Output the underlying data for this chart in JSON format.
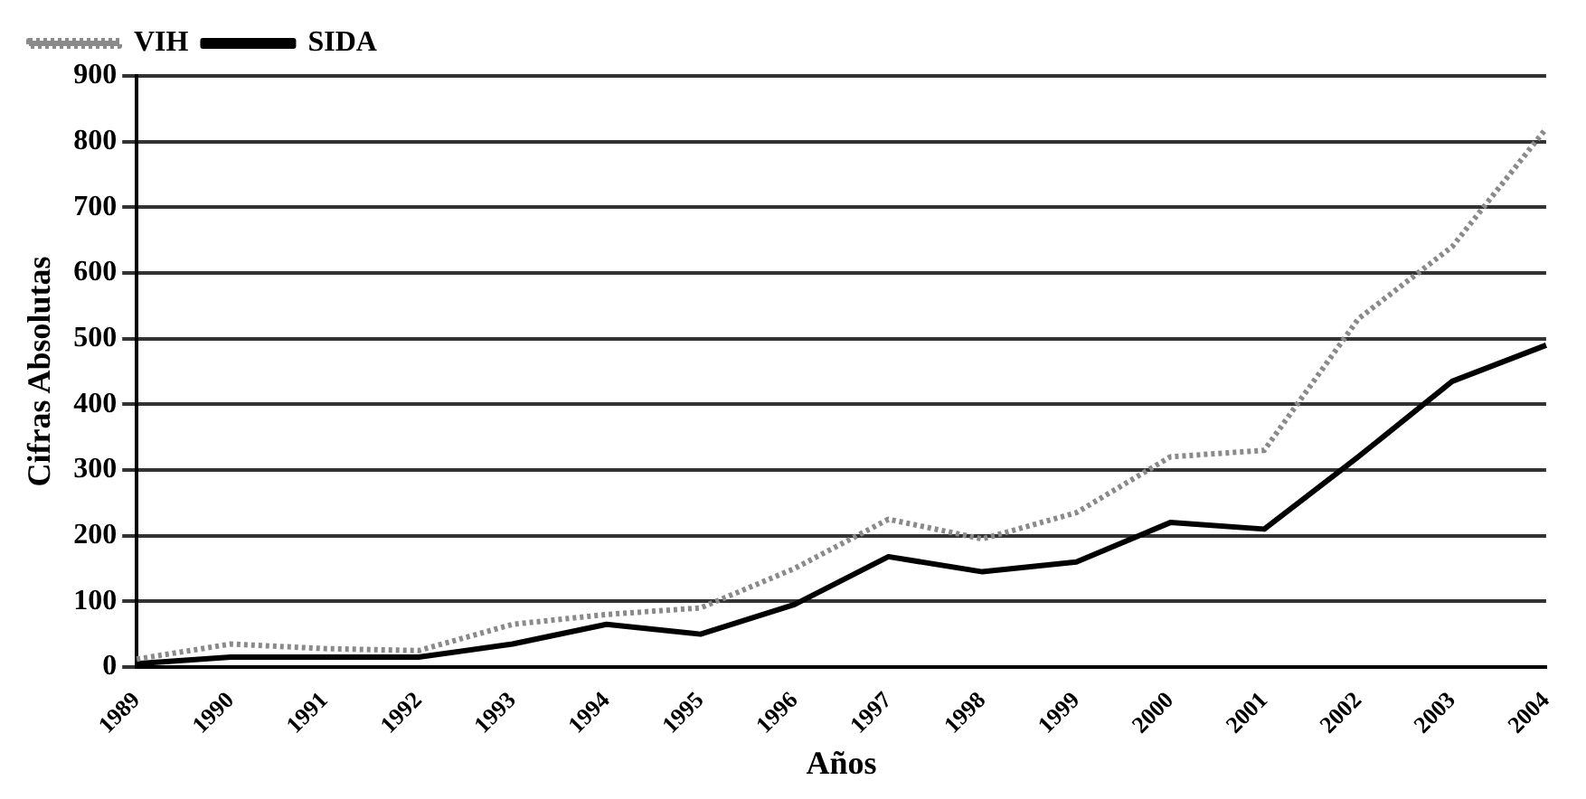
{
  "chart_data": {
    "type": "line",
    "xlabel": "Años",
    "ylabel": "Cifras Absolutas",
    "categories": [
      "1989",
      "1990",
      "1991",
      "1992",
      "1993",
      "1994",
      "1995",
      "1996",
      "1997",
      "1998",
      "1999",
      "2000",
      "2001",
      "2002",
      "2003",
      "2004"
    ],
    "series": [
      {
        "name": "VIH",
        "color": "#8a8a8a",
        "line_style": "dotted",
        "values": [
          12,
          35,
          28,
          25,
          65,
          80,
          90,
          150,
          225,
          195,
          235,
          320,
          330,
          530,
          640,
          820
        ]
      },
      {
        "name": "SIDA",
        "color": "#000000",
        "line_style": "solid",
        "values": [
          5,
          15,
          15,
          15,
          35,
          65,
          50,
          95,
          168,
          145,
          160,
          220,
          210,
          320,
          435,
          490
        ]
      }
    ],
    "ylim": [
      0,
      900
    ],
    "yticks": [
      0,
      100,
      200,
      300,
      400,
      500,
      600,
      700,
      800,
      900
    ],
    "grid": "y",
    "legend": "top left",
    "marker": "none"
  }
}
